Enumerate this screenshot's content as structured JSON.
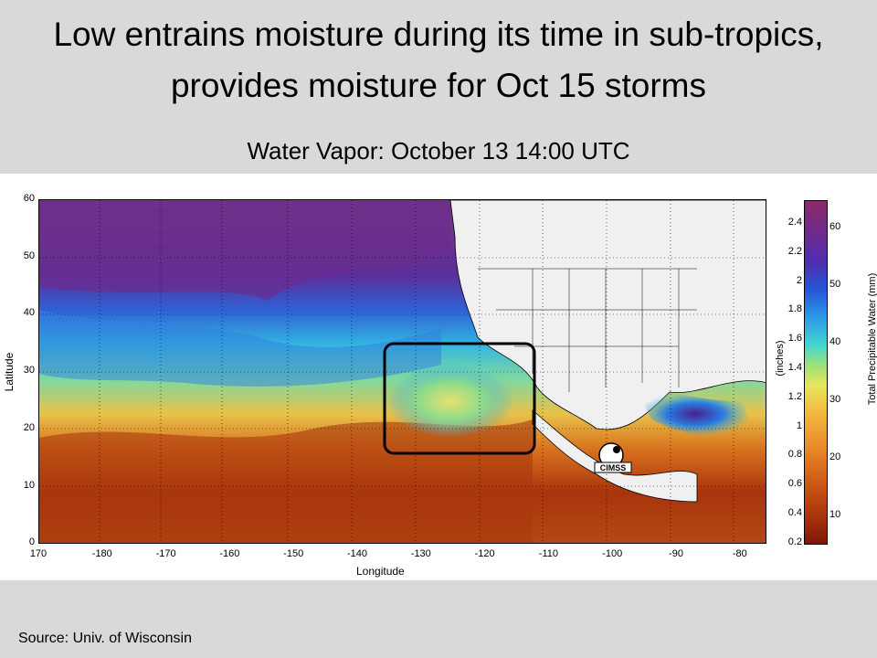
{
  "slide": {
    "title": "Low entrains moisture during its time in sub-tropics, provides moisture for Oct 15 storms",
    "subtitle": "Water Vapor: October 13 14:00 UTC",
    "source": "Source: Univ. of  Wisconsin"
  },
  "map": {
    "xlabel": "Longitude",
    "ylabel": "Latitude",
    "xticks": [
      "170",
      "-180",
      "-170",
      "-160",
      "-150",
      "-140",
      "-130",
      "-120",
      "-110",
      "-100",
      "-90",
      "-80"
    ],
    "yticks": [
      "60",
      "50",
      "40",
      "30",
      "20",
      "10",
      "0"
    ],
    "logo_text": "CIMSS",
    "colorbar": {
      "inches_label": "(inches)",
      "mm_label": "Total Precipitable Water (mm)",
      "inches_ticks": [
        "2.4",
        "2.2",
        "2",
        "1.8",
        "1.6",
        "1.4",
        "1.2",
        "1",
        "0.8",
        "0.6",
        "0.4",
        "0.2"
      ],
      "mm_ticks": [
        "60",
        "50",
        "40",
        "30",
        "20",
        "10"
      ]
    },
    "highlight": "black rounded rectangle over subtropical low west of Baja California"
  },
  "colors": {
    "background": "#d9d9d9",
    "moist": "#b0400e",
    "dry": "#6d2a8f",
    "mid": "#2c9be8"
  }
}
